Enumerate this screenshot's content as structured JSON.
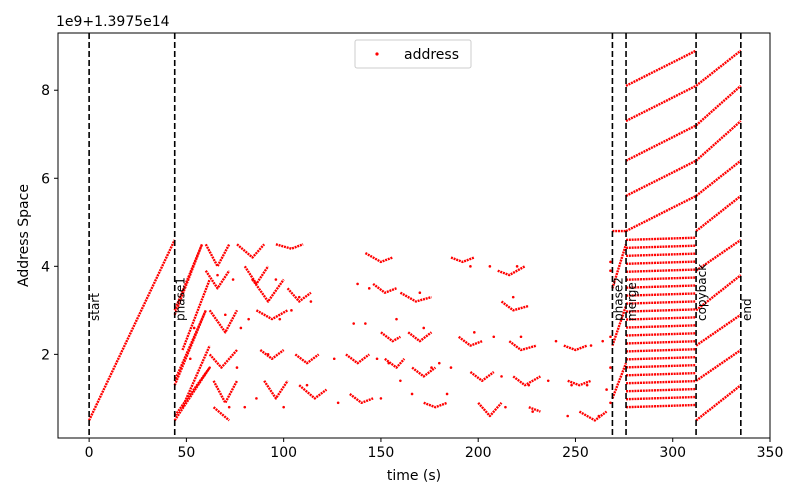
{
  "chart_data": {
    "type": "scatter",
    "xlabel": "time (s)",
    "ylabel": "Address Space",
    "y_offset_text": "1e9+1.3975e14",
    "xlim": [
      -16,
      350
    ],
    "ylim": [
      0.1,
      9.3
    ],
    "xticks": [
      0,
      50,
      100,
      150,
      200,
      250,
      300,
      350
    ],
    "yticks": [
      2,
      4,
      6,
      8
    ],
    "grid": false,
    "legend": {
      "placement": "top-center",
      "entries": [
        {
          "label": "address",
          "color": "#ff0000"
        }
      ]
    },
    "phase_markers": [
      {
        "x": 0,
        "label": "start"
      },
      {
        "x": 44,
        "label": "phase1"
      },
      {
        "x": 269,
        "label": "phase2"
      },
      {
        "x": 276,
        "label": "merge"
      },
      {
        "x": 312,
        "label": "copyback"
      },
      {
        "x": 335,
        "label": "end"
      }
    ],
    "series": [
      {
        "name": "address",
        "color": "#ff0000",
        "segments": [
          [
            [
              0,
              0.5
            ],
            [
              44,
              4.6
            ]
          ],
          [
            [
              44,
              2.9
            ],
            [
              58,
              4.5
            ],
            [
              44,
              3.0
            ]
          ],
          [
            [
              44,
              1.3
            ],
            [
              60,
              3.0
            ],
            [
              44,
              1.4
            ]
          ],
          [
            [
              44,
              0.5
            ],
            [
              62,
              1.7
            ],
            [
              44,
              0.6
            ]
          ],
          [
            [
              48,
              2.1
            ],
            [
              62,
              3.7
            ]
          ],
          [
            [
              48,
              0.8
            ],
            [
              62,
              2.2
            ]
          ],
          [
            [
              60,
              4.5
            ],
            [
              66,
              4.0
            ],
            [
              72,
              4.5
            ]
          ],
          [
            [
              60,
              3.9
            ],
            [
              66,
              3.5
            ],
            [
              72,
              3.9
            ]
          ],
          [
            [
              62,
              3.0
            ],
            [
              70,
              2.5
            ],
            [
              76,
              3.0
            ]
          ],
          [
            [
              62,
              2.0
            ],
            [
              68,
              1.7
            ],
            [
              76,
              2.1
            ]
          ],
          [
            [
              64,
              1.4
            ],
            [
              70,
              0.9
            ],
            [
              76,
              1.4
            ]
          ],
          [
            [
              64,
              0.8
            ],
            [
              72,
              0.5
            ]
          ],
          [
            [
              76,
              4.5
            ],
            [
              84,
              4.2
            ],
            [
              90,
              4.5
            ]
          ],
          [
            [
              80,
              4.0
            ],
            [
              86,
              3.6
            ],
            [
              92,
              4.0
            ]
          ],
          [
            [
              84,
              3.7
            ],
            [
              92,
              3.2
            ],
            [
              100,
              3.7
            ]
          ],
          [
            [
              86,
              3.0
            ],
            [
              94,
              2.8
            ],
            [
              102,
              3.0
            ]
          ],
          [
            [
              88,
              2.1
            ],
            [
              94,
              1.9
            ],
            [
              100,
              2.1
            ]
          ],
          [
            [
              90,
              1.4
            ],
            [
              96,
              1.0
            ],
            [
              102,
              1.4
            ]
          ],
          [
            [
              96,
              4.5
            ],
            [
              104,
              4.4
            ],
            [
              110,
              4.5
            ]
          ],
          [
            [
              102,
              3.5
            ],
            [
              108,
              3.2
            ],
            [
              114,
              3.4
            ]
          ],
          [
            [
              106,
              2.0
            ],
            [
              112,
              1.8
            ],
            [
              118,
              2.0
            ]
          ],
          [
            [
              108,
              1.3
            ],
            [
              116,
              1.0
            ],
            [
              122,
              1.2
            ]
          ],
          [
            [
              132,
              2.0
            ],
            [
              138,
              1.8
            ],
            [
              144,
              2.0
            ]
          ],
          [
            [
              134,
              1.1
            ],
            [
              140,
              0.9
            ],
            [
              146,
              1.0
            ]
          ],
          [
            [
              142,
              4.3
            ],
            [
              150,
              4.1
            ],
            [
              156,
              4.2
            ]
          ],
          [
            [
              146,
              3.6
            ],
            [
              152,
              3.4
            ],
            [
              158,
              3.5
            ]
          ],
          [
            [
              150,
              2.5
            ],
            [
              156,
              2.3
            ],
            [
              160,
              2.4
            ]
          ],
          [
            [
              152,
              1.9
            ],
            [
              158,
              1.7
            ],
            [
              162,
              1.9
            ]
          ],
          [
            [
              160,
              3.4
            ],
            [
              168,
              3.2
            ],
            [
              176,
              3.3
            ]
          ],
          [
            [
              164,
              2.5
            ],
            [
              170,
              2.3
            ],
            [
              176,
              2.5
            ]
          ],
          [
            [
              166,
              1.7
            ],
            [
              172,
              1.5
            ],
            [
              178,
              1.7
            ]
          ],
          [
            [
              172,
              0.9
            ],
            [
              178,
              0.8
            ],
            [
              184,
              0.9
            ]
          ],
          [
            [
              186,
              4.2
            ],
            [
              192,
              4.1
            ],
            [
              198,
              4.2
            ]
          ],
          [
            [
              190,
              2.4
            ],
            [
              196,
              2.2
            ],
            [
              202,
              2.3
            ]
          ],
          [
            [
              196,
              1.6
            ],
            [
              202,
              1.4
            ],
            [
              208,
              1.6
            ]
          ],
          [
            [
              200,
              0.9
            ],
            [
              206,
              0.6
            ],
            [
              212,
              0.9
            ]
          ],
          [
            [
              210,
              3.9
            ],
            [
              216,
              3.8
            ],
            [
              224,
              4.0
            ]
          ],
          [
            [
              212,
              3.2
            ],
            [
              218,
              3.0
            ],
            [
              226,
              3.1
            ]
          ],
          [
            [
              216,
              2.3
            ],
            [
              222,
              2.1
            ],
            [
              230,
              2.2
            ]
          ],
          [
            [
              218,
              1.5
            ],
            [
              224,
              1.3
            ],
            [
              232,
              1.5
            ]
          ],
          [
            [
              226,
              0.8
            ],
            [
              232,
              0.7
            ]
          ],
          [
            [
              244,
              2.2
            ],
            [
              250,
              2.1
            ],
            [
              256,
              2.2
            ]
          ],
          [
            [
              246,
              1.4
            ],
            [
              252,
              1.3
            ],
            [
              258,
              1.4
            ]
          ],
          [
            [
              252,
              0.7
            ],
            [
              260,
              0.5
            ],
            [
              266,
              0.7
            ]
          ],
          [
            [
              269,
              4.8
            ],
            [
              276,
              4.8
            ]
          ],
          [
            [
              269,
              3.5
            ],
            [
              276,
              4.5
            ]
          ],
          [
            [
              269,
              2.2
            ],
            [
              276,
              3.1
            ]
          ],
          [
            [
              269,
              1.0
            ],
            [
              276,
              1.8
            ]
          ],
          [
            [
              276,
              8.1
            ],
            [
              312,
              8.9
            ]
          ],
          [
            [
              276,
              7.3
            ],
            [
              312,
              8.1
            ]
          ],
          [
            [
              276,
              6.4
            ],
            [
              312,
              7.2
            ]
          ],
          [
            [
              276,
              5.6
            ],
            [
              312,
              6.4
            ]
          ],
          [
            [
              276,
              4.8
            ],
            [
              312,
              5.6
            ]
          ],
          [
            [
              312,
              5.6
            ],
            [
              335,
              6.4
            ]
          ],
          [
            [
              312,
              6.4
            ],
            [
              335,
              7.3
            ]
          ],
          [
            [
              312,
              7.2
            ],
            [
              335,
              8.1
            ]
          ],
          [
            [
              312,
              8.1
            ],
            [
              335,
              8.9
            ]
          ],
          [
            [
              312,
              4.8
            ],
            [
              335,
              5.6
            ]
          ],
          [
            [
              312,
              3.9
            ],
            [
              335,
              4.6
            ]
          ],
          [
            [
              312,
              3.0
            ],
            [
              335,
              3.8
            ]
          ],
          [
            [
              312,
              2.2
            ],
            [
              335,
              2.9
            ]
          ],
          [
            [
              312,
              1.4
            ],
            [
              335,
              2.1
            ]
          ],
          [
            [
              312,
              0.5
            ],
            [
              335,
              1.3
            ]
          ]
        ],
        "merge_block": {
          "x0": 276,
          "x1": 312,
          "y_start": 0.8,
          "y_end": 4.6,
          "count": 22,
          "rise": 0.05
        },
        "scatter_points": [
          [
            52,
            1.9
          ],
          [
            54,
            2.6
          ],
          [
            66,
            3.8
          ],
          [
            70,
            2.9
          ],
          [
            72,
            0.8
          ],
          [
            74,
            3.7
          ],
          [
            76,
            1.7
          ],
          [
            78,
            2.6
          ],
          [
            80,
            0.8
          ],
          [
            82,
            2.8
          ],
          [
            84,
            3.7
          ],
          [
            86,
            1.0
          ],
          [
            92,
            2.0
          ],
          [
            96,
            3.7
          ],
          [
            98,
            2.8
          ],
          [
            100,
            0.8
          ],
          [
            104,
            3.0
          ],
          [
            108,
            3.3
          ],
          [
            112,
            1.3
          ],
          [
            114,
            3.2
          ],
          [
            126,
            1.9
          ],
          [
            128,
            0.9
          ],
          [
            136,
            2.7
          ],
          [
            138,
            3.6
          ],
          [
            142,
            2.7
          ],
          [
            144,
            3.5
          ],
          [
            148,
            1.9
          ],
          [
            150,
            1.0
          ],
          [
            154,
            1.8
          ],
          [
            158,
            2.8
          ],
          [
            160,
            1.4
          ],
          [
            166,
            1.1
          ],
          [
            170,
            3.4
          ],
          [
            172,
            2.6
          ],
          [
            176,
            1.7
          ],
          [
            180,
            1.8
          ],
          [
            184,
            1.1
          ],
          [
            186,
            1.7
          ],
          [
            196,
            4.0
          ],
          [
            198,
            2.5
          ],
          [
            206,
            4.0
          ],
          [
            208,
            2.4
          ],
          [
            212,
            1.5
          ],
          [
            214,
            0.8
          ],
          [
            218,
            3.3
          ],
          [
            220,
            4.0
          ],
          [
            222,
            2.4
          ],
          [
            226,
            1.3
          ],
          [
            228,
            0.7
          ],
          [
            236,
            1.4
          ],
          [
            240,
            2.3
          ],
          [
            246,
            0.6
          ],
          [
            248,
            1.3
          ],
          [
            256,
            1.3
          ],
          [
            258,
            2.2
          ],
          [
            262,
            0.6
          ],
          [
            264,
            2.3
          ],
          [
            266,
            1.2
          ],
          [
            268,
            4.1
          ],
          [
            268,
            3.9
          ],
          [
            268,
            2.4
          ],
          [
            268,
            1.7
          ],
          [
            268,
            0.9
          ]
        ]
      }
    ]
  }
}
